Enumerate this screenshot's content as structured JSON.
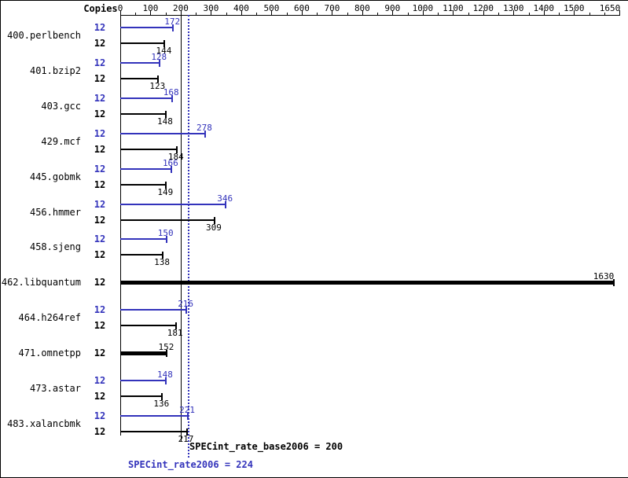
{
  "copies_header": "Copies",
  "chart_data": {
    "type": "bar",
    "orientation": "horizontal",
    "title": "",
    "xlim": [
      0,
      1650
    ],
    "x_tick_values": [
      0,
      100,
      200,
      300,
      400,
      500,
      600,
      700,
      800,
      900,
      1000,
      1100,
      1200,
      1300,
      1400,
      1500,
      1650
    ],
    "series_colors": {
      "peak": "#3333bb",
      "base": "#000000"
    },
    "benchmarks": [
      {
        "name": "400.perlbench",
        "rows": [
          {
            "series": "peak",
            "copies": 12,
            "value": 172
          },
          {
            "series": "base",
            "copies": 12,
            "value": 144
          }
        ]
      },
      {
        "name": "401.bzip2",
        "rows": [
          {
            "series": "peak",
            "copies": 12,
            "value": 128
          },
          {
            "series": "base",
            "copies": 12,
            "value": 123
          }
        ]
      },
      {
        "name": "403.gcc",
        "rows": [
          {
            "series": "peak",
            "copies": 12,
            "value": 168
          },
          {
            "series": "base",
            "copies": 12,
            "value": 148
          }
        ]
      },
      {
        "name": "429.mcf",
        "rows": [
          {
            "series": "peak",
            "copies": 12,
            "value": 278
          },
          {
            "series": "base",
            "copies": 12,
            "value": 184
          }
        ]
      },
      {
        "name": "445.gobmk",
        "rows": [
          {
            "series": "peak",
            "copies": 12,
            "value": 166
          },
          {
            "series": "base",
            "copies": 12,
            "value": 149
          }
        ]
      },
      {
        "name": "456.hmmer",
        "rows": [
          {
            "series": "peak",
            "copies": 12,
            "value": 346
          },
          {
            "series": "base",
            "copies": 12,
            "value": 309
          }
        ]
      },
      {
        "name": "458.sjeng",
        "rows": [
          {
            "series": "peak",
            "copies": 12,
            "value": 150
          },
          {
            "series": "base",
            "copies": 12,
            "value": 138
          }
        ]
      },
      {
        "name": "462.libquantum",
        "rows": [
          {
            "series": "base",
            "copies": 12,
            "value": 1630,
            "bold": true
          }
        ]
      },
      {
        "name": "464.h264ref",
        "rows": [
          {
            "series": "peak",
            "copies": 12,
            "value": 216
          },
          {
            "series": "base",
            "copies": 12,
            "value": 181
          }
        ]
      },
      {
        "name": "471.omnetpp",
        "rows": [
          {
            "series": "base",
            "copies": 12,
            "value": 152,
            "bold": true
          }
        ]
      },
      {
        "name": "473.astar",
        "rows": [
          {
            "series": "peak",
            "copies": 12,
            "value": 148
          },
          {
            "series": "base",
            "copies": 12,
            "value": 136
          }
        ]
      },
      {
        "name": "483.xalancbmk",
        "rows": [
          {
            "series": "peak",
            "copies": 12,
            "value": 221
          },
          {
            "series": "base",
            "copies": 12,
            "value": 217
          }
        ]
      }
    ],
    "reference_lines": [
      {
        "label": "SPECint_rate_base2006 = 200",
        "value": 200,
        "style": "solid",
        "color": "#000000"
      },
      {
        "label": "SPECint_rate2006 = 224",
        "value": 224,
        "style": "dotted",
        "color": "#3333bb"
      }
    ]
  }
}
